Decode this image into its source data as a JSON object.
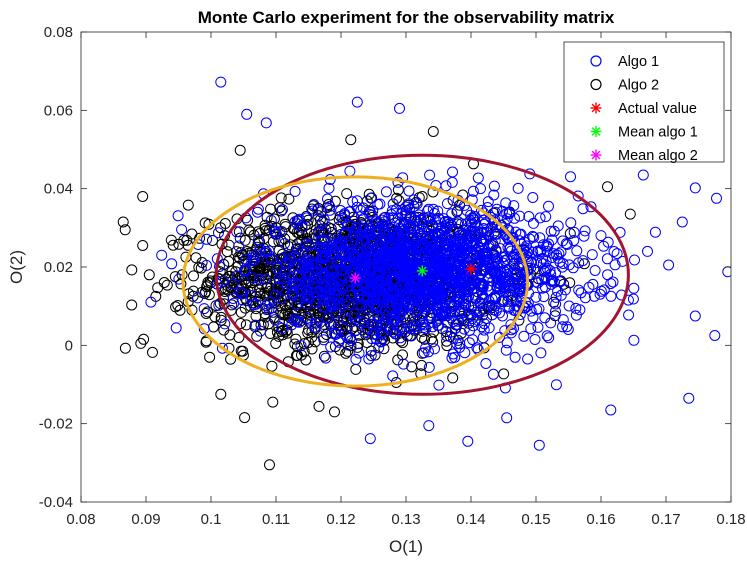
{
  "chart_data": {
    "type": "scatter",
    "title": "Monte Carlo experiment for the observability matrix",
    "xlabel": "O(1)",
    "ylabel": "O(2)",
    "xlim": [
      0.08,
      0.18
    ],
    "ylim": [
      -0.04,
      0.08
    ],
    "xticks": [
      0.08,
      0.09,
      0.1,
      0.11,
      0.12,
      0.13,
      0.14,
      0.15,
      0.16,
      0.17,
      0.18
    ],
    "xtick_labels": [
      "0.08",
      "0.09",
      "0.1",
      "0.11",
      "0.12",
      "0.13",
      "0.14",
      "0.15",
      "0.16",
      "0.17",
      "0.18"
    ],
    "yticks": [
      -0.04,
      -0.02,
      0,
      0.02,
      0.04,
      0.06,
      0.08
    ],
    "ytick_labels": [
      "-0.04",
      "-0.02",
      "0",
      "0.02",
      "0.04",
      "0.06",
      "0.08"
    ],
    "grid": false,
    "legend_position": "top-right",
    "series": [
      {
        "name": "Algo 1",
        "marker": "circle",
        "color": "#0000ff",
        "distribution": {
          "mean": [
            0.1325,
            0.019
          ],
          "std": [
            0.0125,
            0.0085
          ]
        },
        "outliers": [
          [
            0.1015,
            0.0672
          ],
          [
            0.1225,
            0.0621
          ],
          [
            0.129,
            0.0605
          ],
          [
            0.1745,
            0.0402
          ],
          [
            0.1795,
            0.0188
          ],
          [
            0.1775,
            0.0025
          ],
          [
            0.1735,
            -0.0135
          ],
          [
            0.1505,
            -0.0255
          ],
          [
            0.1395,
            -0.0245
          ],
          [
            0.1245,
            -0.0238
          ],
          [
            0.1055,
            0.059
          ],
          [
            0.1085,
            0.0568
          ],
          [
            0.1665,
            0.0435
          ],
          [
            0.1725,
            0.0315
          ],
          [
            0.1745,
            0.0075
          ],
          [
            0.1615,
            -0.0165
          ],
          [
            0.1455,
            -0.0185
          ],
          [
            0.1335,
            -0.0205
          ]
        ]
      },
      {
        "name": "Algo 2",
        "marker": "circle",
        "color": "#000000",
        "distribution": {
          "mean": [
            0.1222,
            0.0172
          ],
          "std": [
            0.011,
            0.0085
          ]
        },
        "outliers": [
          [
            0.0865,
            0.0315
          ],
          [
            0.0868,
            0.0295
          ],
          [
            0.0895,
            0.038
          ],
          [
            0.0895,
            0.0255
          ],
          [
            0.0905,
            0.018
          ],
          [
            0.0878,
            0.0103
          ],
          [
            0.0892,
            0.0005
          ],
          [
            0.091,
            -0.0018
          ],
          [
            0.0915,
            0.0125
          ],
          [
            0.109,
            -0.0305
          ],
          [
            0.119,
            -0.017
          ],
          [
            0.1342,
            0.0546
          ],
          [
            0.1645,
            0.0335
          ],
          [
            0.161,
            0.0405
          ],
          [
            0.1215,
            0.0525
          ],
          [
            0.1045,
            0.0498
          ],
          [
            0.0965,
            0.0358
          ],
          [
            0.1015,
            -0.0125
          ],
          [
            0.1095,
            -0.0145
          ],
          [
            0.1285,
            -0.0095
          ]
        ]
      },
      {
        "name": "Actual value",
        "marker": "asterisk",
        "color": "#ff0000",
        "points": [
          [
            0.14,
            0.0195
          ]
        ]
      },
      {
        "name": "Mean algo 1",
        "marker": "asterisk",
        "color": "#00ff00",
        "points": [
          [
            0.1325,
            0.019
          ]
        ]
      },
      {
        "name": "Mean algo 2",
        "marker": "asterisk",
        "color": "#ff00ff",
        "points": [
          [
            0.1222,
            0.0172
          ]
        ]
      }
    ],
    "ellipses": [
      {
        "name": "Algo 1 covariance ellipse",
        "color": "#a2142f",
        "center": [
          0.1325,
          0.018
        ],
        "radii": [
          0.0317,
          0.0305
        ]
      },
      {
        "name": "Algo 2 covariance ellipse",
        "color": "#edb120",
        "center": [
          0.1222,
          0.0163
        ],
        "radii": [
          0.0265,
          0.0267
        ]
      }
    ]
  }
}
